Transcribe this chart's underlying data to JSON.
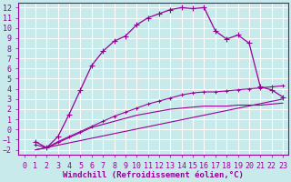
{
  "xlabel": "Windchill (Refroidissement éolien,°C)",
  "background_color": "#c8eaea",
  "grid_color": "#ffffff",
  "line_color": "#990099",
  "xlim": [
    -0.5,
    23.5
  ],
  "ylim": [
    -2.5,
    12.5
  ],
  "xticks": [
    0,
    1,
    2,
    3,
    4,
    5,
    6,
    7,
    8,
    9,
    10,
    11,
    12,
    13,
    14,
    15,
    16,
    17,
    18,
    19,
    20,
    21,
    22,
    23
  ],
  "yticks": [
    -2,
    -1,
    0,
    1,
    2,
    3,
    4,
    5,
    6,
    7,
    8,
    9,
    10,
    11,
    12
  ],
  "curve1_x": [
    1,
    2,
    3,
    4,
    5,
    6,
    7,
    8,
    9,
    10,
    11,
    12,
    13,
    14,
    15,
    16,
    17,
    18,
    19,
    20,
    21,
    22,
    23
  ],
  "curve1_y": [
    -1.2,
    -1.8,
    -0.7,
    1.5,
    3.9,
    6.3,
    7.7,
    8.7,
    9.2,
    10.3,
    11.0,
    11.4,
    11.8,
    12.0,
    11.9,
    12.0,
    9.7,
    8.9,
    9.3,
    8.5,
    4.2,
    3.9,
    3.2
  ],
  "curve2_x": [
    1,
    2,
    3,
    4,
    5,
    6,
    7,
    8,
    9,
    10,
    11,
    12,
    13,
    14,
    15,
    16,
    17,
    18,
    19,
    20,
    21,
    22,
    23
  ],
  "curve2_y": [
    -1.5,
    -1.8,
    -1.2,
    -0.7,
    -0.2,
    0.3,
    0.8,
    1.3,
    1.7,
    2.1,
    2.5,
    2.8,
    3.1,
    3.4,
    3.6,
    3.7,
    3.7,
    3.8,
    3.9,
    4.0,
    4.1,
    4.2,
    4.3
  ],
  "curve3_x": [
    1,
    23
  ],
  "curve3_y": [
    -2.0,
    3.0
  ],
  "curve4_x": [
    1,
    2,
    3,
    4,
    5,
    6,
    7,
    8,
    9,
    10,
    11,
    12,
    13,
    14,
    15,
    16,
    17,
    18,
    19,
    20,
    21,
    22,
    23
  ],
  "curve4_y": [
    -2.0,
    -1.8,
    -1.3,
    -0.8,
    -0.3,
    0.2,
    0.5,
    0.8,
    1.1,
    1.4,
    1.6,
    1.8,
    2.0,
    2.1,
    2.2,
    2.3,
    2.3,
    2.3,
    2.4,
    2.4,
    2.4,
    2.5,
    2.6
  ],
  "xlabel_fontsize": 6.5,
  "tick_fontsize": 6
}
